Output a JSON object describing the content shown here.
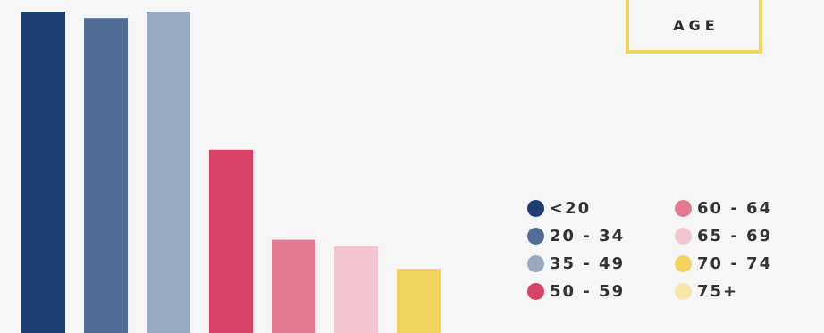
{
  "chart_data": {
    "type": "bar",
    "title": "AGE",
    "categories": [
      "<20",
      "20 - 34",
      "35 - 49",
      "50 - 59",
      "60 - 64",
      "65 - 69",
      "70 - 74",
      "75+"
    ],
    "series": [
      {
        "values": [
          100,
          98,
          100,
          57,
          29,
          27,
          20,
          0
        ]
      }
    ],
    "colors": [
      "#1e3d73",
      "#526d97",
      "#98a9c2",
      "#d94265",
      "#e37a94",
      "#f3c5d0",
      "#f2d35e",
      "#f6e6a8"
    ],
    "legend": {
      "position": "bottom-right",
      "columns": 2
    },
    "grid": false,
    "axes_visible": false
  }
}
